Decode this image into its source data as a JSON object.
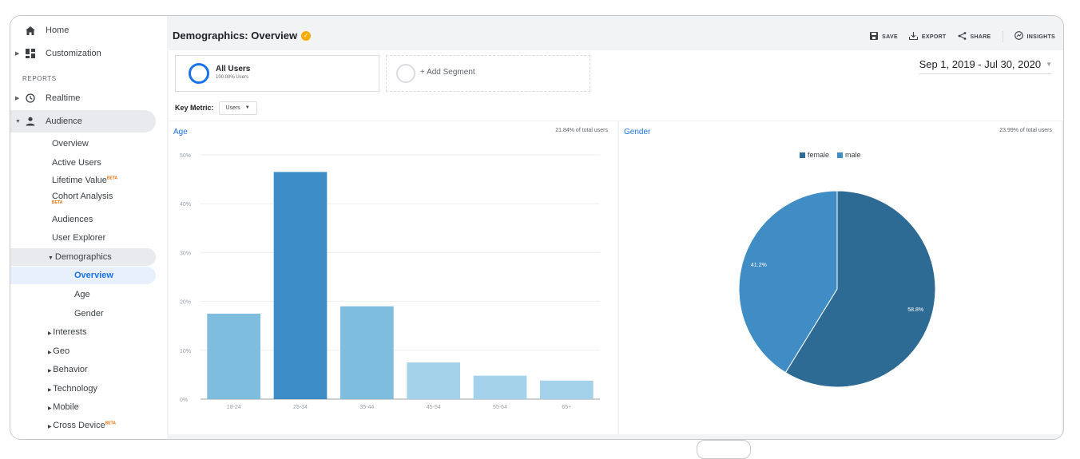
{
  "sidebar": {
    "home": "Home",
    "customization": "Customization",
    "reports": "REPORTS",
    "realtime": "Realtime",
    "audience": "Audience",
    "audience_items": {
      "overview": "Overview",
      "active_users": "Active Users",
      "lifetime_value": "Lifetime Value",
      "cohort_analysis": "Cohort Analysis",
      "audiences": "Audiences",
      "user_explorer": "User Explorer",
      "demographics": "Demographics",
      "demo_overview": "Overview",
      "demo_age": "Age",
      "demo_gender": "Gender",
      "interests": "Interests",
      "geo": "Geo",
      "behavior": "Behavior",
      "technology": "Technology",
      "mobile": "Mobile",
      "cross_device": "Cross Device"
    },
    "beta_badge": "BETA"
  },
  "header": {
    "title": "Demographics: Overview",
    "save": "SAVE",
    "export": "EXPORT",
    "share": "SHARE",
    "insights": "INSIGHTS"
  },
  "segments": {
    "all_users_name": "All Users",
    "all_users_sub": "100.00% Users",
    "add_segment": "+ Add Segment"
  },
  "date_range": "Sep 1, 2019 - Jul 30, 2020",
  "key_metric": {
    "label": "Key Metric:",
    "value": "Users"
  },
  "colors": {
    "accent": "#1a73e8",
    "female": "#2e6b94",
    "male": "#3f8dc4"
  },
  "age_card": {
    "title": "Age",
    "share": "21.84% of total users"
  },
  "gender_card": {
    "title": "Gender",
    "share": "23.99% of total users"
  },
  "chart_data": [
    {
      "type": "bar",
      "title": "Age",
      "categories": [
        "18-24",
        "25-34",
        "35-44",
        "45-54",
        "55-64",
        "65+"
      ],
      "values": [
        17.5,
        46.5,
        19,
        7.5,
        4.8,
        3.8
      ],
      "colors": [
        "#7fbddf",
        "#3c8dc5",
        "#7fbddf",
        "#a3d2ea",
        "#a3d2ea",
        "#a3d2ea"
      ],
      "yticks": [
        "0%",
        "10%",
        "20%",
        "30%",
        "40%",
        "50%"
      ],
      "ylim": [
        0,
        50
      ],
      "grid": true
    },
    {
      "type": "pie",
      "title": "Gender",
      "labels": [
        "female",
        "male"
      ],
      "values": [
        58.8,
        41.2
      ],
      "data_labels": [
        "58.8%",
        "41.2%"
      ],
      "colors": [
        "#2e6b94",
        "#3f8dc4"
      ],
      "legend": "top"
    }
  ]
}
